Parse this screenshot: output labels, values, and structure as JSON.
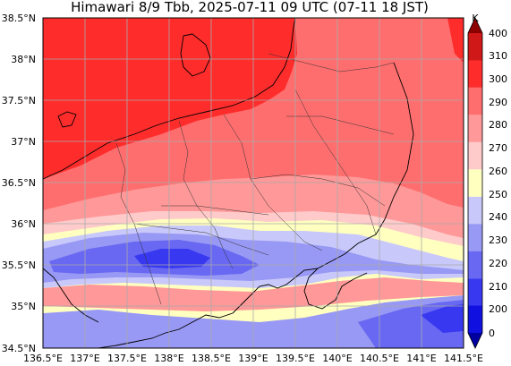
{
  "title": "Himawari 8/9 Tbb, 2025-07-11 09 UTC (07-11 18 JST)",
  "colorbar": {
    "unit": "K",
    "ticks": [
      "400",
      "310",
      "300",
      "290",
      "280",
      "270",
      "260",
      "250",
      "240",
      "230",
      "220",
      "210",
      "200",
      "0"
    ],
    "bands": [
      {
        "from": 0,
        "to": 200,
        "color": "#0000a0"
      },
      {
        "from": 200,
        "to": 210,
        "color": "#1010e0"
      },
      {
        "from": 210,
        "to": 220,
        "color": "#3838f0"
      },
      {
        "from": 220,
        "to": 230,
        "color": "#6868f2"
      },
      {
        "from": 230,
        "to": 240,
        "color": "#9898f5"
      },
      {
        "from": 240,
        "to": 250,
        "color": "#c8c8fa"
      },
      {
        "from": 250,
        "to": 260,
        "color": "#ffffc0"
      },
      {
        "from": 260,
        "to": 270,
        "color": "#ffcaca"
      },
      {
        "from": 270,
        "to": 280,
        "color": "#ff9898"
      },
      {
        "from": 280,
        "to": 290,
        "color": "#ff6e6e"
      },
      {
        "from": 290,
        "to": 300,
        "color": "#ff2c2c"
      },
      {
        "from": 300,
        "to": 310,
        "color": "#d01818"
      },
      {
        "from": 310,
        "to": 400,
        "color": "#8c0000"
      }
    ]
  },
  "map": {
    "lon_range": [
      136.5,
      141.5
    ],
    "lat_range": [
      34.5,
      38.5
    ],
    "lon_ticks": [
      "136.5°E",
      "137°E",
      "137.5°E",
      "138°E",
      "138.5°E",
      "139°E",
      "139.5°E",
      "140°E",
      "140.5°E",
      "141°E",
      "141.5°E"
    ],
    "lat_ticks": [
      "38.5°N",
      "38°N",
      "37.5°N",
      "37°N",
      "36.5°N",
      "36°N",
      "35.5°N",
      "35°N",
      "34.5°N"
    ],
    "grid": true,
    "colors": {
      "warm_area": "#ff2c2c",
      "mid_area": "#ff6e6e",
      "cloud_band": "#6868f2"
    }
  }
}
